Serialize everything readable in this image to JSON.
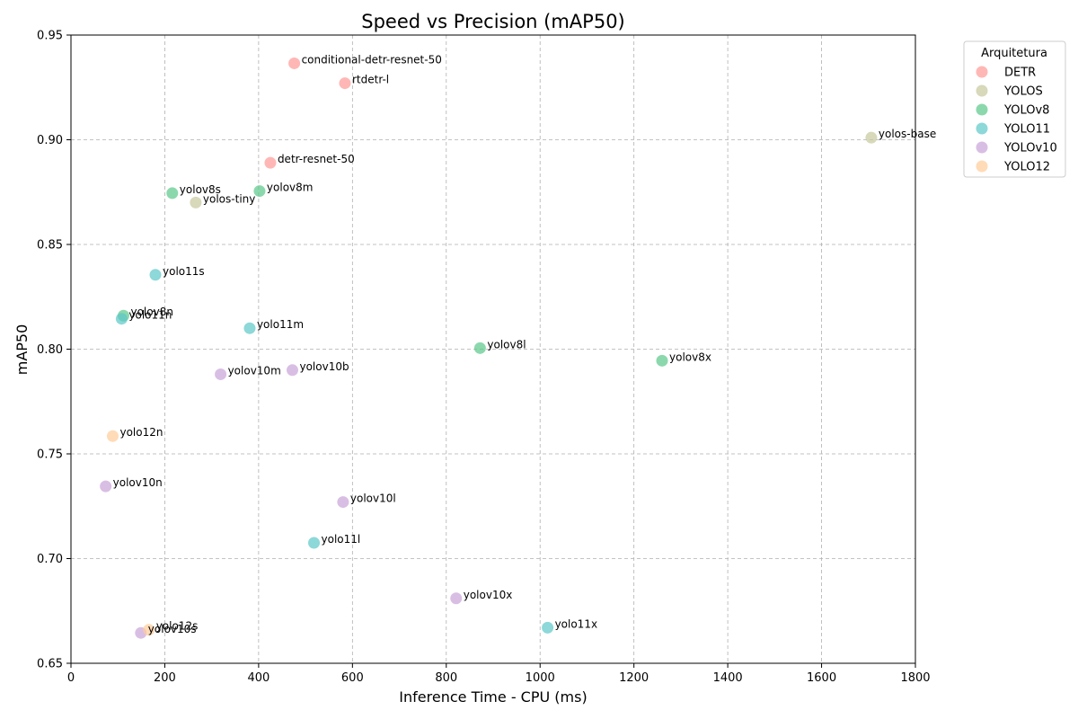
{
  "chart_data": {
    "type": "scatter",
    "title": "Speed vs Precision (mAP50)",
    "xlabel": "Inference Time - CPU (ms)",
    "ylabel": "mAP50",
    "xlim": [
      0,
      1800
    ],
    "ylim": [
      0.65,
      0.95
    ],
    "xticks": [
      0,
      200,
      400,
      600,
      800,
      1000,
      1200,
      1400,
      1600,
      1800
    ],
    "yticks": [
      0.65,
      0.7,
      0.75,
      0.8,
      0.85,
      0.9,
      0.95
    ],
    "grid": true,
    "legend_title": "Arquitetura",
    "legend_position": "outside-top-right",
    "series": [
      {
        "name": "DETR",
        "color": "#ff9896",
        "points": [
          {
            "label": "conditional-detr-resnet-50",
            "x": 476,
            "y": 0.9365
          },
          {
            "label": "rtdetr-l",
            "x": 584,
            "y": 0.927
          },
          {
            "label": "detr-resnet-50",
            "x": 425,
            "y": 0.889
          }
        ]
      },
      {
        "name": "YOLOS",
        "color": "#c7c79c",
        "points": [
          {
            "label": "yolos-base",
            "x": 1706,
            "y": 0.901
          },
          {
            "label": "yolos-tiny",
            "x": 266,
            "y": 0.87
          }
        ]
      },
      {
        "name": "YOLOv8",
        "color": "#5ac88a",
        "points": [
          {
            "label": "yolov8s",
            "x": 216,
            "y": 0.8745
          },
          {
            "label": "yolov8m",
            "x": 402,
            "y": 0.8755
          },
          {
            "label": "yolov8n",
            "x": 112,
            "y": 0.816
          },
          {
            "label": "yolov8l",
            "x": 872,
            "y": 0.8005
          },
          {
            "label": "yolov8x",
            "x": 1260,
            "y": 0.7945
          }
        ]
      },
      {
        "name": "YOLO11",
        "color": "#5cc8c8",
        "points": [
          {
            "label": "yolo11s",
            "x": 180,
            "y": 0.8355
          },
          {
            "label": "yolo11n",
            "x": 108,
            "y": 0.8145
          },
          {
            "label": "yolo11m",
            "x": 381,
            "y": 0.81
          },
          {
            "label": "yolo11l",
            "x": 518,
            "y": 0.7075
          },
          {
            "label": "yolo11x",
            "x": 1016,
            "y": 0.667
          }
        ]
      },
      {
        "name": "YOLOv10",
        "color": "#c9a3d9",
        "points": [
          {
            "label": "yolov10m",
            "x": 319,
            "y": 0.788
          },
          {
            "label": "yolov10b",
            "x": 472,
            "y": 0.79
          },
          {
            "label": "yolov10n",
            "x": 74,
            "y": 0.7345
          },
          {
            "label": "yolov10l",
            "x": 580,
            "y": 0.727
          },
          {
            "label": "yolov10x",
            "x": 821,
            "y": 0.681
          },
          {
            "label": "yolov10s",
            "x": 149,
            "y": 0.6645
          }
        ]
      },
      {
        "name": "YOLO12",
        "color": "#ffcc99",
        "points": [
          {
            "label": "yolo12n",
            "x": 89,
            "y": 0.7585
          },
          {
            "label": "yolo12s",
            "x": 166,
            "y": 0.666
          }
        ]
      }
    ]
  }
}
